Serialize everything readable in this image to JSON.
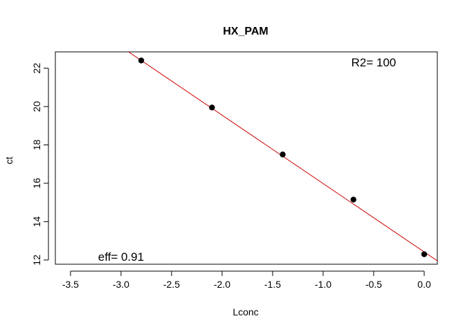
{
  "chart_data": {
    "type": "scatter",
    "title": "HX_PAM",
    "xlabel": "Lconc",
    "ylabel": "ct",
    "xlim": [
      -3.65,
      0.13
    ],
    "ylim": [
      11.78,
      22.85
    ],
    "x_ticks": [
      -3.5,
      -3.0,
      -2.5,
      -2.0,
      -1.5,
      -1.0,
      -0.5,
      0.0
    ],
    "x_tick_labels": [
      "-3.5",
      "-3.0",
      "-2.5",
      "-2.0",
      "-1.5",
      "-1.0",
      "-0.5",
      "0.0"
    ],
    "y_ticks": [
      12,
      14,
      16,
      18,
      20,
      22
    ],
    "y_tick_labels": [
      "12",
      "14",
      "16",
      "18",
      "20",
      "22"
    ],
    "grid": false,
    "points": [
      {
        "x": -2.8,
        "y": 22.4
      },
      {
        "x": -2.1,
        "y": 19.95
      },
      {
        "x": -1.4,
        "y": 17.5
      },
      {
        "x": -0.7,
        "y": 15.15
      },
      {
        "x": 0.0,
        "y": 12.3
      }
    ],
    "fit_line": {
      "slope": -3.565,
      "intercept": 12.42,
      "color": "#cc0000"
    },
    "point_color": "#000000",
    "annotations": [
      {
        "text": "R2= 100",
        "x": -0.5,
        "y": 22.3
      },
      {
        "text": "eff= 0.91",
        "x": -3.0,
        "y": 12.15
      }
    ]
  }
}
